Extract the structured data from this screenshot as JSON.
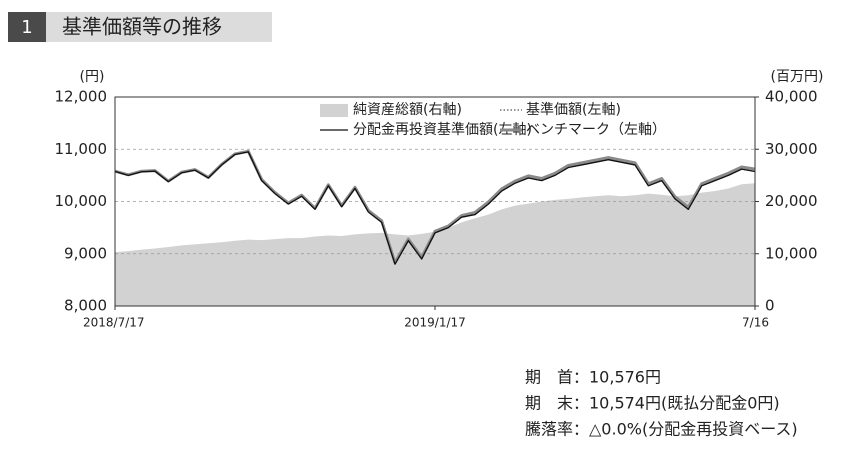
{
  "header": {
    "number": "1",
    "title": "基準価額等の推移"
  },
  "chart_data": {
    "type": "line",
    "y_unit": "(円)",
    "y2_unit": "(百万円)",
    "categories": [
      "2018/7/17",
      null,
      null,
      null,
      null,
      null,
      null,
      null,
      null,
      null,
      null,
      null,
      null,
      null,
      null,
      null,
      null,
      null,
      null,
      null,
      null,
      null,
      null,
      null,
      "2019/1/17",
      null,
      null,
      null,
      null,
      null,
      null,
      null,
      null,
      null,
      null,
      null,
      null,
      null,
      null,
      null,
      null,
      null,
      null,
      null,
      null,
      null,
      null,
      null,
      "7/16"
    ],
    "ylim": [
      8000,
      12000
    ],
    "yticks": [
      {
        "value": 8000,
        "label": "8,000"
      },
      {
        "value": 9000,
        "label": "9,000"
      },
      {
        "value": 10000,
        "label": "10,000"
      },
      {
        "value": 11000,
        "label": "11,000"
      },
      {
        "value": 12000,
        "label": "12,000"
      }
    ],
    "y2lim": [
      0,
      40000
    ],
    "y2ticks": [
      0,
      {
        "value": 10000,
        "label": "10,000"
      },
      {
        "value": 20000,
        "label": "20,000"
      },
      {
        "value": 30000,
        "label": "30,000"
      },
      {
        "value": 40000,
        "label": "40,000"
      }
    ],
    "grid": true,
    "legend": "top-right",
    "series": [
      {
        "name": "純資産総額(右軸)",
        "type": "area",
        "axis": "y2",
        "color": "#d2d2d2",
        "values": [
          10300,
          10500,
          10800,
          11000,
          11300,
          11600,
          11800,
          12000,
          12200,
          12500,
          12700,
          12600,
          12800,
          13000,
          13000,
          13300,
          13500,
          13400,
          13700,
          13900,
          14000,
          13700,
          13500,
          13800,
          14200,
          15000,
          16000,
          16800,
          17500,
          18500,
          19200,
          19600,
          20000,
          20300,
          20500,
          20800,
          21000,
          21200,
          21000,
          21200,
          21500,
          21300,
          21000,
          21200,
          21700,
          22000,
          22500,
          23300,
          23500
        ]
      },
      {
        "name": "分配金再投資基準価額(左軸)",
        "type": "line",
        "color": "#111111",
        "values": [
          10576,
          10500,
          10570,
          10580,
          10380,
          10550,
          10600,
          10450,
          10700,
          10900,
          10950,
          10400,
          10150,
          9950,
          10100,
          9850,
          10300,
          9900,
          10250,
          9800,
          9600,
          8800,
          9250,
          8900,
          9400,
          9500,
          9700,
          9750,
          9950,
          10200,
          10350,
          10450,
          10400,
          10500,
          10650,
          10700,
          10750,
          10800,
          10750,
          10700,
          10300,
          10400,
          10050,
          9850,
          10300,
          10400,
          10500,
          10620,
          10574
        ]
      },
      {
        "name": "基準価額(左軸)",
        "type": "line",
        "dash": "dotted",
        "color": "#555555",
        "values": [
          10576,
          10500,
          10570,
          10580,
          10380,
          10550,
          10600,
          10450,
          10700,
          10900,
          10950,
          10400,
          10150,
          9950,
          10100,
          9850,
          10300,
          9900,
          10250,
          9800,
          9600,
          8800,
          9250,
          8900,
          9400,
          9500,
          9700,
          9750,
          9950,
          10200,
          10350,
          10450,
          10400,
          10500,
          10650,
          10700,
          10750,
          10800,
          10750,
          10700,
          10300,
          10400,
          10050,
          9850,
          10300,
          10400,
          10500,
          10620,
          10574
        ]
      },
      {
        "name": "ベンチマーク（左軸）",
        "type": "line",
        "color": "#8a8a8a",
        "values": [
          10580,
          10510,
          10580,
          10590,
          10390,
          10560,
          10610,
          10460,
          10710,
          10910,
          10960,
          10420,
          10170,
          9970,
          10120,
          9870,
          10320,
          9920,
          10270,
          9830,
          9630,
          8830,
          9280,
          8930,
          9430,
          9530,
          9730,
          9790,
          9990,
          10240,
          10390,
          10490,
          10440,
          10540,
          10690,
          10740,
          10790,
          10840,
          10790,
          10740,
          10340,
          10440,
          10090,
          9890,
          10340,
          10440,
          10540,
          10660,
          10620
        ]
      }
    ]
  },
  "summary": [
    "期　首：10,576円",
    "期　末：10,574円(既払分配金0円)",
    "騰落率：△0.0%(分配金再投資ベース)"
  ]
}
